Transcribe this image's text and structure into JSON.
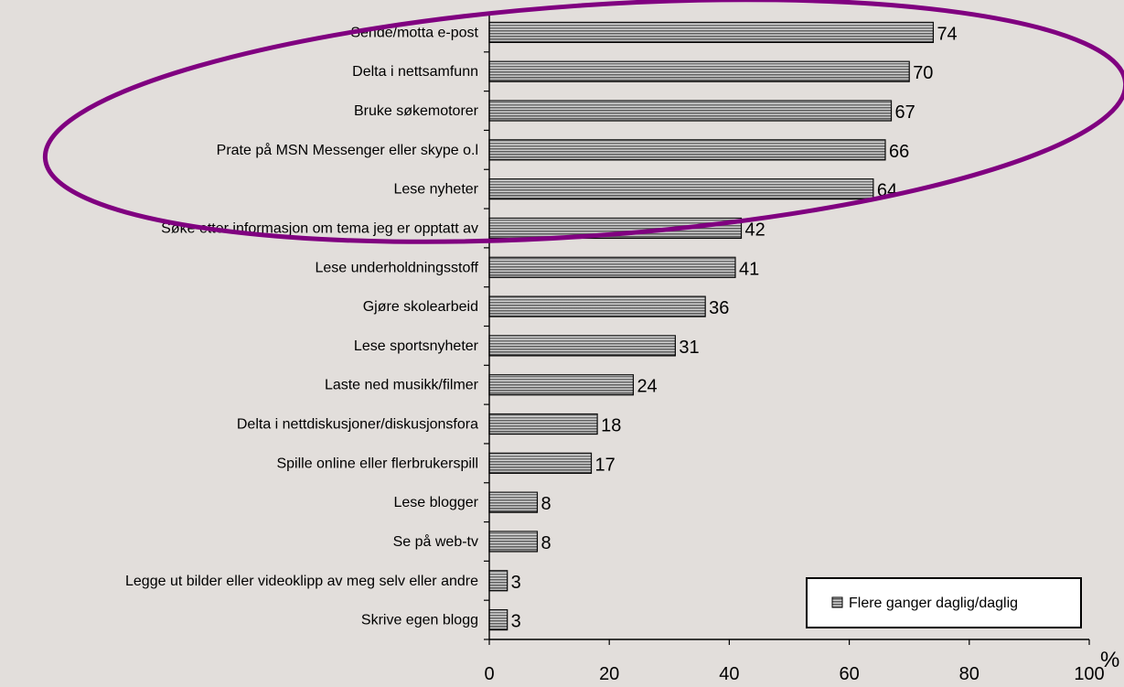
{
  "chart_data": {
    "type": "bar",
    "orientation": "horizontal",
    "categories": [
      "Sende/motta e-post",
      "Delta i nettsamfunn",
      "Bruke søkemotorer",
      "Prate på MSN Messenger eller skype o.l",
      "Lese nyheter",
      "Søke etter informasjon om tema jeg er opptatt av",
      "Lese underholdningsstoff",
      "Gjøre skolearbeid",
      "Lese sportsnyheter",
      "Laste ned  musikk/filmer",
      "Delta i nettdiskusjoner/diskusjonsfora",
      "Spille online eller flerbrukerspill",
      "Lese blogger",
      "Se på web-tv",
      "Legge ut bilder eller videoklipp av meg selv eller andre",
      "Skrive egen blogg"
    ],
    "series": [
      {
        "name": "Flere ganger daglig/daglig",
        "values": [
          74,
          70,
          67,
          66,
          64,
          42,
          41,
          36,
          31,
          24,
          18,
          17,
          8,
          8,
          3,
          3
        ]
      }
    ],
    "value_labels": [
      "74",
      "70",
      "67",
      "66",
      "64",
      "42",
      "41",
      "36",
      "31",
      "24",
      "18",
      "17",
      "8",
      "8",
      "3",
      "3"
    ],
    "xlim": [
      0,
      100
    ],
    "x_ticks": [
      0,
      20,
      40,
      60,
      80,
      100
    ],
    "x_tick_labels": [
      "0",
      "20",
      "40",
      "60",
      "80",
      "100"
    ],
    "unit_label": "%",
    "grid": false,
    "legend": {
      "position": "bottom-right",
      "label": "Flere ganger daglig/daglig"
    },
    "highlight": {
      "shape": "ellipse",
      "color": "#800080",
      "encloses_categories": 5
    },
    "colors": {
      "background": "#e2dedb",
      "bar_dark": "#6a6a6a",
      "bar_light": "#d4d4d4",
      "axis": "#000000"
    }
  }
}
